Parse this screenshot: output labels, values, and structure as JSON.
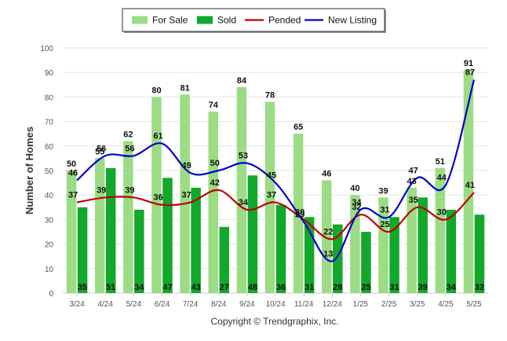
{
  "chart_data": {
    "type": "bar",
    "categories": [
      "3/24",
      "4/24",
      "5/24",
      "6/24",
      "7/24",
      "8/24",
      "9/24",
      "10/24",
      "11/24",
      "12/24",
      "1/25",
      "2/25",
      "3/25",
      "4/25",
      "5/25"
    ],
    "series": [
      {
        "name": "For Sale",
        "kind": "bar",
        "color": "#9bdc85",
        "values": [
          50,
          55,
          62,
          80,
          81,
          74,
          84,
          78,
          65,
          46,
          40,
          39,
          43,
          51,
          91
        ]
      },
      {
        "name": "Sold",
        "kind": "bar",
        "color": "#11a82c",
        "values": [
          35,
          51,
          34,
          47,
          43,
          27,
          48,
          36,
          31,
          28,
          25,
          31,
          39,
          34,
          32
        ]
      },
      {
        "name": "Pended",
        "kind": "line",
        "color": "#c00000",
        "values": [
          37,
          39,
          39,
          36,
          37,
          42,
          34,
          37,
          30,
          22,
          32,
          25,
          35,
          30,
          41
        ]
      },
      {
        "name": "New Listing",
        "kind": "line",
        "color": "#0000cc",
        "values": [
          46,
          56,
          56,
          61,
          49,
          50,
          53,
          45,
          29,
          13,
          34,
          31,
          47,
          44,
          87
        ]
      }
    ],
    "ylabel": "Number of Homes",
    "ylim": [
      0,
      100
    ],
    "yticks": [
      0,
      10,
      20,
      30,
      40,
      50,
      60,
      70,
      80,
      90,
      100
    ],
    "grid": true,
    "legend_position": "top-center"
  },
  "footer": "Copyright © Trendgraphix, Inc."
}
